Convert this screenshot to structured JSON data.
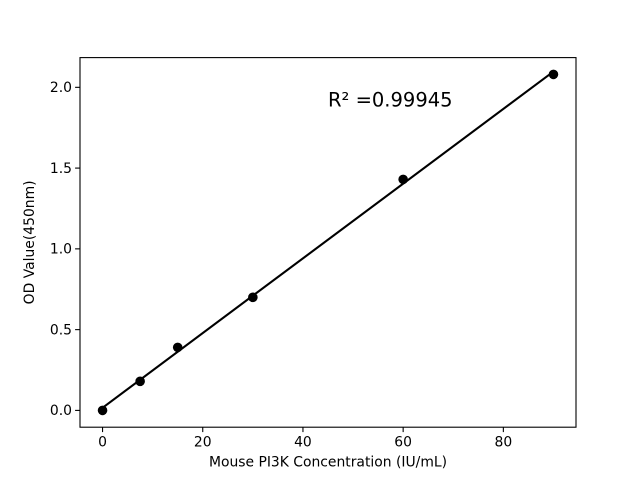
{
  "figure": {
    "background_color": "#ffffff",
    "foreground_color": "#000000"
  },
  "chart_data": {
    "type": "scatter",
    "title": "",
    "xlabel": "Mouse PI3K Concentration (IU/mL)",
    "ylabel": "OD Value(450nm)",
    "annotation": {
      "text": "R² =0.99945"
    },
    "x": [
      0,
      7.5,
      15,
      30,
      60,
      90
    ],
    "y": [
      0,
      0.18,
      0.39,
      0.7,
      1.43,
      2.08
    ],
    "fit": {
      "type": "linear",
      "slope": 0.02313,
      "intercept": 0.016,
      "x_range": [
        0,
        90
      ],
      "r_squared": 0.99945
    },
    "xlim": [
      -4.5,
      94.5
    ],
    "ylim": [
      -0.104,
      2.184
    ],
    "xticks": {
      "values": [
        0,
        20,
        40,
        60,
        80
      ],
      "labels": [
        "0",
        "20",
        "40",
        "60",
        "80"
      ]
    },
    "yticks": {
      "values": [
        0,
        0.5,
        1,
        1.5,
        2
      ],
      "labels": [
        "0.0",
        "0.5",
        "1.0",
        "1.5",
        "2.0"
      ]
    },
    "grid": false,
    "legend": null,
    "marker_color": "#000000",
    "line_color": "#000000"
  }
}
